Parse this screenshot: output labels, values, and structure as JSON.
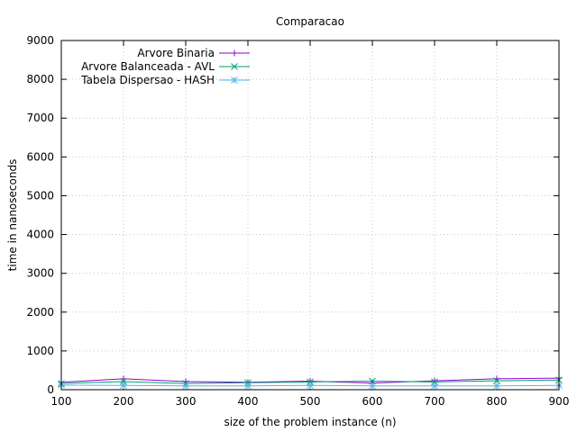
{
  "chart_data": {
    "type": "line",
    "title": "Comparacao",
    "xlabel": "size of the problem instance (n)",
    "ylabel": "time in nanoseconds",
    "xlim": [
      100,
      900
    ],
    "ylim": [
      0,
      9000
    ],
    "x_ticks": [
      100,
      200,
      300,
      400,
      500,
      600,
      700,
      800,
      900
    ],
    "y_ticks": [
      0,
      1000,
      2000,
      3000,
      4000,
      5000,
      6000,
      7000,
      8000,
      9000
    ],
    "grid": true,
    "legend_position": "top-left",
    "x": [
      100,
      200,
      300,
      400,
      500,
      600,
      700,
      800,
      900
    ],
    "series": [
      {
        "name": "Arvore Binaria",
        "color": "#9400d3",
        "marker": "plus",
        "values": [
          190,
          280,
          210,
          190,
          220,
          170,
          230,
          280,
          300
        ]
      },
      {
        "name": "Arvore Balanceada - AVL",
        "color": "#009e73",
        "marker": "cross",
        "values": [
          160,
          210,
          160,
          180,
          200,
          220,
          200,
          230,
          250
        ]
      },
      {
        "name": "Tabela Dispersao - HASH",
        "color": "#56b4e9",
        "marker": "star",
        "values": [
          120,
          110,
          100,
          100,
          110,
          100,
          100,
          100,
          110
        ]
      }
    ]
  }
}
